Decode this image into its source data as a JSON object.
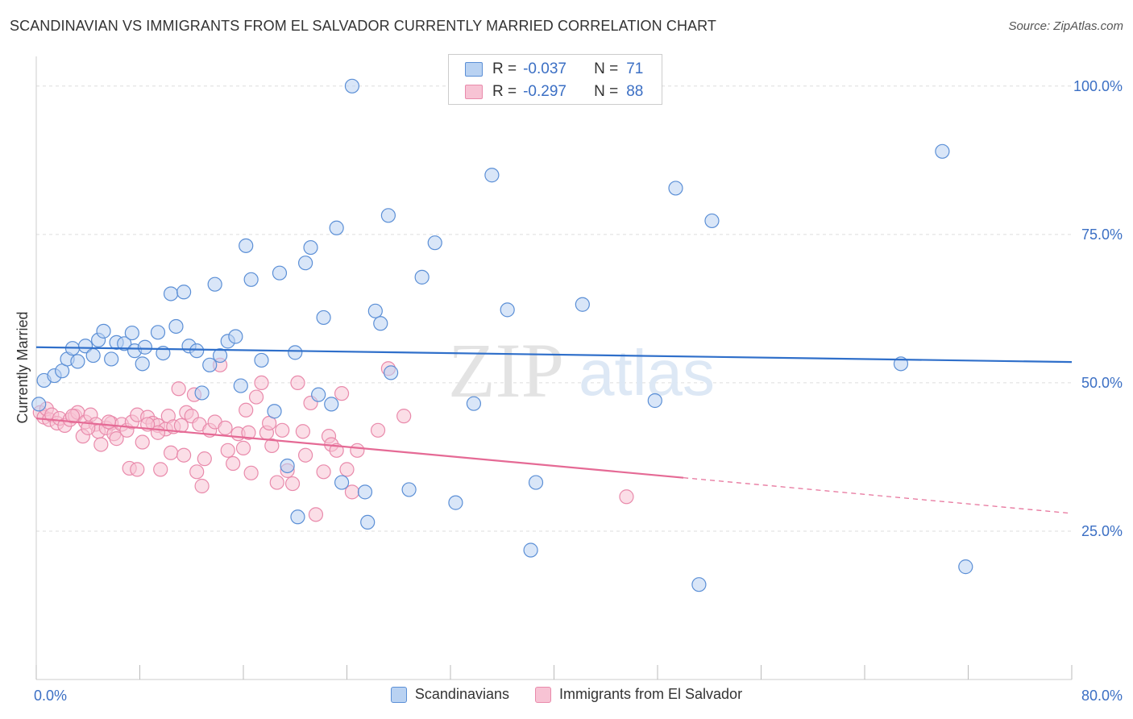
{
  "title": "SCANDINAVIAN VS IMMIGRANTS FROM EL SALVADOR CURRENTLY MARRIED CORRELATION CHART",
  "source": "Source: ZipAtlas.com",
  "watermark": {
    "zip": "ZIP",
    "atlas": "atlas"
  },
  "colors": {
    "blue_fill": "#b9d2f2",
    "blue_stroke": "#5b8fd6",
    "blue_line": "#2f6fca",
    "pink_fill": "#f7c3d4",
    "pink_stroke": "#e98aab",
    "pink_line": "#e56a95",
    "axis_text": "#3b6fc4",
    "grid": "#dddddd"
  },
  "legend": {
    "rows": [
      {
        "r_label": "R =",
        "r_value": "-0.037",
        "n_label": "N =",
        "n_value": "71"
      },
      {
        "r_label": "R =",
        "r_value": "-0.297",
        "n_label": "N =",
        "n_value": "88"
      }
    ]
  },
  "chart_data": {
    "type": "scatter",
    "title": "SCANDINAVIAN VS IMMIGRANTS FROM EL SALVADOR CURRENTLY MARRIED CORRELATION CHART",
    "xlabel": "",
    "ylabel": "Currently Married",
    "xlim": [
      0,
      80
    ],
    "ylim": [
      0,
      105
    ],
    "x_tick_labels": [
      "0.0%",
      "80.0%"
    ],
    "y_ticks": [
      25,
      50,
      75,
      100
    ],
    "y_tick_labels": [
      "25.0%",
      "50.0%",
      "75.0%",
      "100.0%"
    ],
    "series": [
      {
        "name": "Scandinavians",
        "r": -0.037,
        "n": 71,
        "trend": {
          "x_start": 0,
          "y_start": 56.0,
          "x_end": 80,
          "y_end": 53.5,
          "dashed_from": null
        },
        "points": [
          [
            0.6,
            50.4
          ],
          [
            1.4,
            51.2
          ],
          [
            2.0,
            52.0
          ],
          [
            2.4,
            54.0
          ],
          [
            2.8,
            55.8
          ],
          [
            3.2,
            53.6
          ],
          [
            3.8,
            56.2
          ],
          [
            4.4,
            54.6
          ],
          [
            4.8,
            57.2
          ],
          [
            5.2,
            58.7
          ],
          [
            5.8,
            54.0
          ],
          [
            6.2,
            56.8
          ],
          [
            6.8,
            56.6
          ],
          [
            7.4,
            58.4
          ],
          [
            7.6,
            55.4
          ],
          [
            8.2,
            53.2
          ],
          [
            8.4,
            56.0
          ],
          [
            9.4,
            58.5
          ],
          [
            9.8,
            55.0
          ],
          [
            10.4,
            65.0
          ],
          [
            10.8,
            59.5
          ],
          [
            11.4,
            65.3
          ],
          [
            11.8,
            56.2
          ],
          [
            12.4,
            55.4
          ],
          [
            12.8,
            48.3
          ],
          [
            13.4,
            53.0
          ],
          [
            13.8,
            66.6
          ],
          [
            14.2,
            54.6
          ],
          [
            14.8,
            57.0
          ],
          [
            15.4,
            57.8
          ],
          [
            15.8,
            49.5
          ],
          [
            16.2,
            73.1
          ],
          [
            16.6,
            67.4
          ],
          [
            17.4,
            53.8
          ],
          [
            18.4,
            45.2
          ],
          [
            18.8,
            68.5
          ],
          [
            19.4,
            36.0
          ],
          [
            20.0,
            55.1
          ],
          [
            20.2,
            27.4
          ],
          [
            20.8,
            70.2
          ],
          [
            21.2,
            72.8
          ],
          [
            21.8,
            48.0
          ],
          [
            22.2,
            61.0
          ],
          [
            22.8,
            46.4
          ],
          [
            23.2,
            76.1
          ],
          [
            23.6,
            33.2
          ],
          [
            24.4,
            100.0
          ],
          [
            25.4,
            31.6
          ],
          [
            25.6,
            26.5
          ],
          [
            26.2,
            62.1
          ],
          [
            26.6,
            60.0
          ],
          [
            27.2,
            78.2
          ],
          [
            27.4,
            51.7
          ],
          [
            28.8,
            32.0
          ],
          [
            29.8,
            67.8
          ],
          [
            30.8,
            73.6
          ],
          [
            32.4,
            29.8
          ],
          [
            33.8,
            46.5
          ],
          [
            35.2,
            85.0
          ],
          [
            36.4,
            62.3
          ],
          [
            38.2,
            21.8
          ],
          [
            38.6,
            33.2
          ],
          [
            42.2,
            63.2
          ],
          [
            47.8,
            47.0
          ],
          [
            49.4,
            82.8
          ],
          [
            51.2,
            16.0
          ],
          [
            52.2,
            77.3
          ],
          [
            66.8,
            53.2
          ],
          [
            70.0,
            89.0
          ],
          [
            71.8,
            19.0
          ],
          [
            0.2,
            46.4
          ]
        ]
      },
      {
        "name": "Immigrants from El Salvador",
        "r": -0.297,
        "n": 88,
        "trend": {
          "x_start": 0,
          "y_start": 44.0,
          "x_end": 80,
          "y_end": 28.0,
          "dashed_from": 50
        },
        "points": [
          [
            0.3,
            45.0
          ],
          [
            0.6,
            44.2
          ],
          [
            0.8,
            45.6
          ],
          [
            1.0,
            43.8
          ],
          [
            1.2,
            44.6
          ],
          [
            1.6,
            43.2
          ],
          [
            1.8,
            44.0
          ],
          [
            2.2,
            42.8
          ],
          [
            2.6,
            43.8
          ],
          [
            3.0,
            44.4
          ],
          [
            3.2,
            45.0
          ],
          [
            3.6,
            41.0
          ],
          [
            3.8,
            43.4
          ],
          [
            4.2,
            44.6
          ],
          [
            4.6,
            43.0
          ],
          [
            4.8,
            41.8
          ],
          [
            5.0,
            39.6
          ],
          [
            5.4,
            42.4
          ],
          [
            5.8,
            43.2
          ],
          [
            6.0,
            41.4
          ],
          [
            6.2,
            40.6
          ],
          [
            6.6,
            43.0
          ],
          [
            7.0,
            42.0
          ],
          [
            7.2,
            35.6
          ],
          [
            7.4,
            43.4
          ],
          [
            7.8,
            44.6
          ],
          [
            7.8,
            35.4
          ],
          [
            8.2,
            40.0
          ],
          [
            8.6,
            44.2
          ],
          [
            9.0,
            43.2
          ],
          [
            9.4,
            42.8
          ],
          [
            9.6,
            35.4
          ],
          [
            10.0,
            42.2
          ],
          [
            10.2,
            44.4
          ],
          [
            10.4,
            38.2
          ],
          [
            10.6,
            42.6
          ],
          [
            11.0,
            49.0
          ],
          [
            11.2,
            42.8
          ],
          [
            11.4,
            37.8
          ],
          [
            11.6,
            45.0
          ],
          [
            12.0,
            44.4
          ],
          [
            12.2,
            48.0
          ],
          [
            12.4,
            35.0
          ],
          [
            12.6,
            43.0
          ],
          [
            12.8,
            32.6
          ],
          [
            13.0,
            37.2
          ],
          [
            13.4,
            42.0
          ],
          [
            13.8,
            43.4
          ],
          [
            14.2,
            53.0
          ],
          [
            14.6,
            42.4
          ],
          [
            14.8,
            38.6
          ],
          [
            15.2,
            36.4
          ],
          [
            15.6,
            41.4
          ],
          [
            16.0,
            39.0
          ],
          [
            16.2,
            45.4
          ],
          [
            16.6,
            34.8
          ],
          [
            17.0,
            47.6
          ],
          [
            17.4,
            50.0
          ],
          [
            17.8,
            41.6
          ],
          [
            18.2,
            39.4
          ],
          [
            18.6,
            33.2
          ],
          [
            19.0,
            42.0
          ],
          [
            19.4,
            35.2
          ],
          [
            19.8,
            33.0
          ],
          [
            20.2,
            50.0
          ],
          [
            20.6,
            41.8
          ],
          [
            20.8,
            37.8
          ],
          [
            21.2,
            46.6
          ],
          [
            21.6,
            27.8
          ],
          [
            22.2,
            35.0
          ],
          [
            22.6,
            41.0
          ],
          [
            22.8,
            39.6
          ],
          [
            23.2,
            38.6
          ],
          [
            23.6,
            48.2
          ],
          [
            24.0,
            35.4
          ],
          [
            24.4,
            31.6
          ],
          [
            24.8,
            38.6
          ],
          [
            26.4,
            42.0
          ],
          [
            27.2,
            52.4
          ],
          [
            28.4,
            44.4
          ],
          [
            45.6,
            30.8
          ],
          [
            16.4,
            41.6
          ],
          [
            9.4,
            41.6
          ],
          [
            8.6,
            43.0
          ],
          [
            4.0,
            42.4
          ],
          [
            2.8,
            44.4
          ],
          [
            5.6,
            43.4
          ],
          [
            18.0,
            43.2
          ]
        ]
      }
    ]
  }
}
